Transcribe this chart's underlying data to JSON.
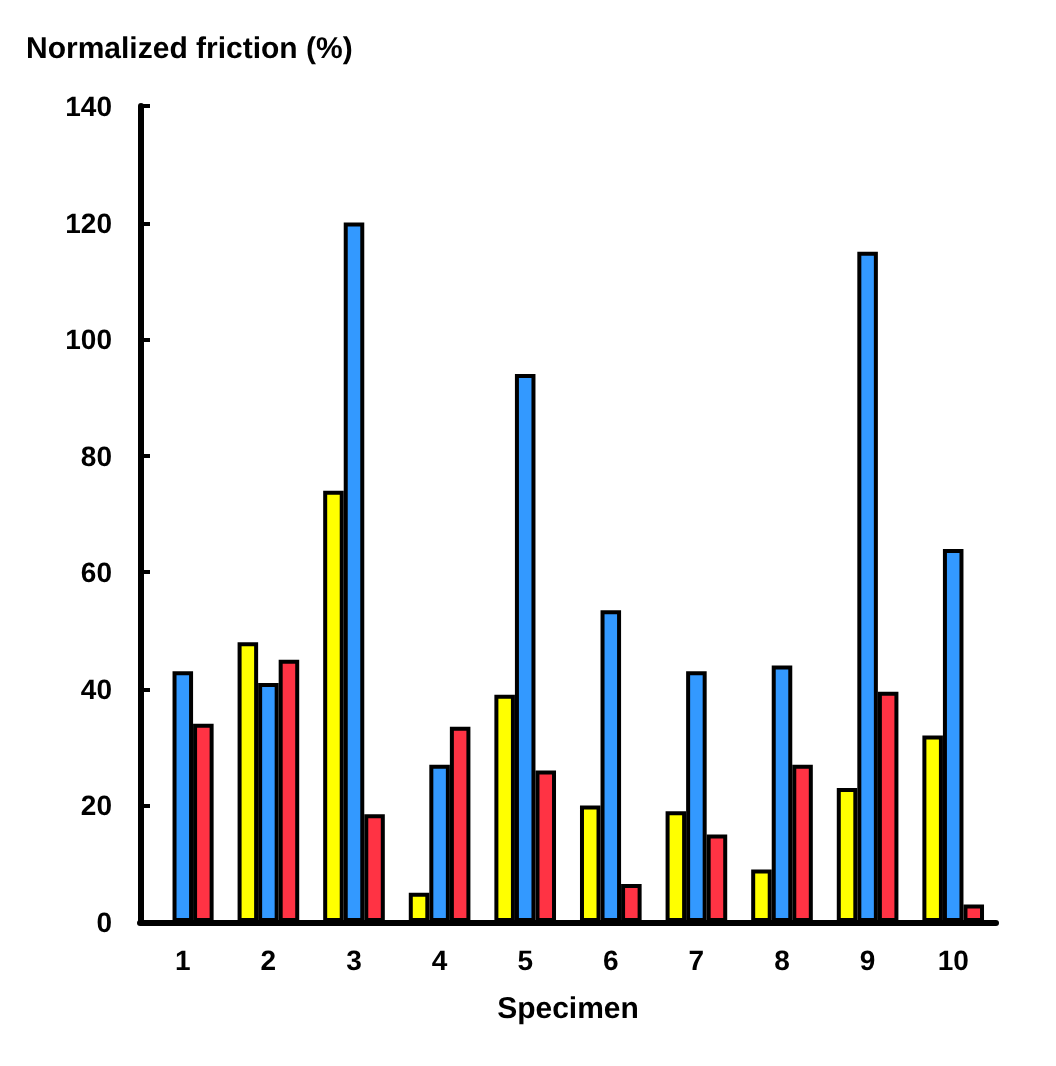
{
  "chart_data": {
    "type": "bar",
    "ylabel": "Normalized friction (%)",
    "xlabel": "Specimen",
    "categories": [
      "1",
      "2",
      "3",
      "4",
      "5",
      "6",
      "7",
      "8",
      "9",
      "10"
    ],
    "series": [
      {
        "color": "#ffff00",
        "values": [
          null,
          48,
          74,
          5,
          39,
          20,
          19,
          9,
          23,
          32
        ]
      },
      {
        "color": "#3399ff",
        "values": [
          43,
          41,
          120,
          27,
          94,
          53.5,
          43,
          44,
          115,
          64
        ]
      },
      {
        "color": "#ff3344",
        "values": [
          34,
          45,
          18.5,
          33.5,
          26,
          6.5,
          15,
          27,
          39.5,
          3
        ]
      }
    ],
    "ylim": [
      0,
      140
    ],
    "yticks": [
      0,
      20,
      40,
      60,
      80,
      100,
      120,
      140
    ],
    "grid": false,
    "legend": false
  }
}
